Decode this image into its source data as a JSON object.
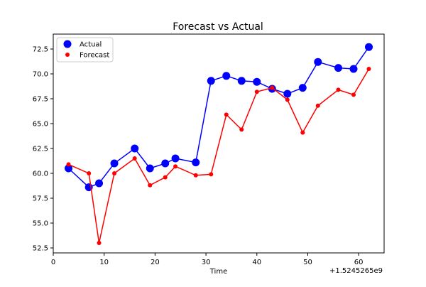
{
  "chart_data": {
    "type": "line",
    "title": "Forecast vs Actual",
    "xlabel": "Time",
    "ylabel": "",
    "x_offset_label": "+1.5245265e9",
    "xlim": [
      0,
      65
    ],
    "ylim": [
      52,
      74
    ],
    "xticks": [
      0,
      10,
      20,
      30,
      40,
      50,
      60
    ],
    "yticks": [
      52.5,
      55.0,
      57.5,
      60.0,
      62.5,
      65.0,
      67.5,
      70.0,
      72.5
    ],
    "grid": false,
    "legend_position": "top-left",
    "series": [
      {
        "name": "Actual",
        "color": "#0000ff",
        "marker": "large-circle",
        "x": [
          3,
          7,
          9,
          12,
          16,
          19,
          22,
          24,
          28,
          31,
          34,
          37,
          40,
          43,
          46,
          49,
          52,
          56,
          59,
          62
        ],
        "y": [
          60.5,
          58.6,
          59.0,
          61.0,
          62.5,
          60.5,
          61.0,
          61.5,
          61.1,
          69.3,
          69.8,
          69.3,
          69.2,
          68.5,
          68.0,
          68.6,
          71.2,
          70.6,
          70.5,
          72.7
        ]
      },
      {
        "name": "Forecast",
        "color": "#ff0000",
        "marker": "small-circle",
        "x": [
          3,
          7,
          9,
          12,
          16,
          19,
          22,
          24,
          28,
          31,
          34,
          37,
          40,
          43,
          46,
          49,
          52,
          56,
          59,
          62
        ],
        "y": [
          60.9,
          60.0,
          53.0,
          60.0,
          61.5,
          58.8,
          59.6,
          60.7,
          59.8,
          59.9,
          65.9,
          64.4,
          68.2,
          68.6,
          67.4,
          64.1,
          66.8,
          68.4,
          67.9,
          70.5
        ]
      }
    ]
  }
}
